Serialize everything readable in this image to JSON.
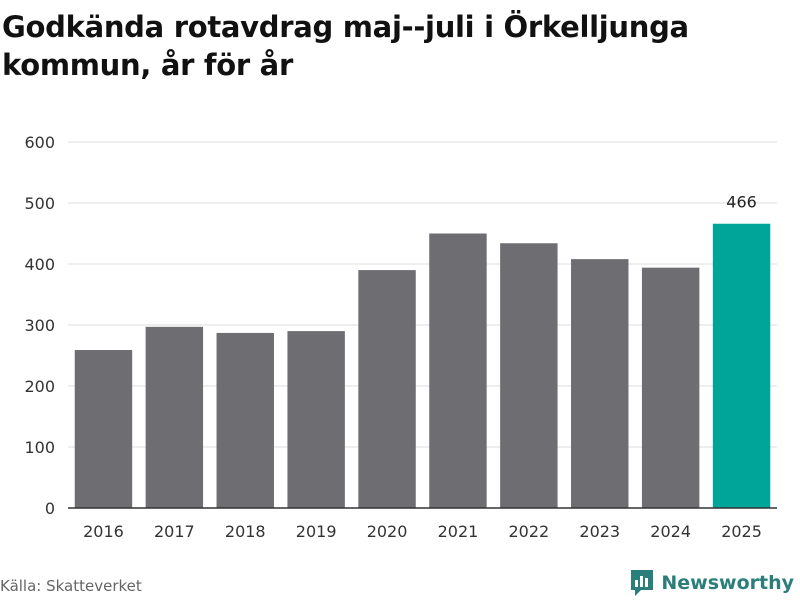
{
  "title": "Godkända rotavdrag maj--juli i Örkelljunga kommun, år för år",
  "source": "Källa: Skatteverket",
  "brand": {
    "name": "Newsworthy",
    "icon": "newsworthy-logo-icon",
    "color": "#2a7f7a"
  },
  "colors": {
    "bar": "#6e6d72",
    "highlight": "#00a59a",
    "grid": "#dddddd",
    "axis": "#333333"
  },
  "chart_data": {
    "type": "bar",
    "categories": [
      "2016",
      "2017",
      "2018",
      "2019",
      "2020",
      "2021",
      "2022",
      "2023",
      "2024",
      "2025"
    ],
    "values": [
      259,
      297,
      287,
      290,
      390,
      450,
      434,
      408,
      394,
      466
    ],
    "highlight_index": 9,
    "value_labels": [
      {
        "index": 9,
        "text": "466"
      }
    ],
    "title": "Godkända rotavdrag maj--juli i Örkelljunga kommun, år för år",
    "xlabel": "",
    "ylabel": "",
    "ylim": [
      0,
      600
    ],
    "yticks": [
      0,
      100,
      200,
      300,
      400,
      500,
      600
    ],
    "grid": true,
    "legend": "none"
  }
}
